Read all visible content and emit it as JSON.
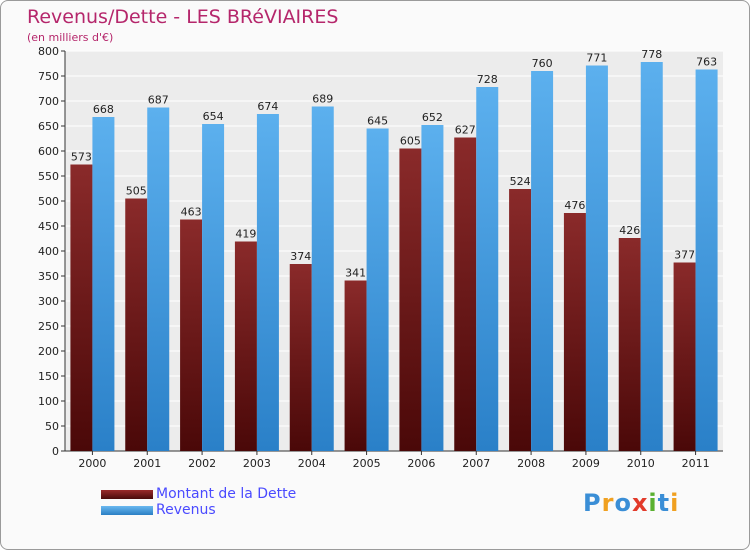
{
  "chart_data": {
    "type": "bar",
    "title": "Revenus/Dette - LES BRéVIAIRES",
    "subtitle": "(en milliers d'€)",
    "categories": [
      "2000",
      "2001",
      "2002",
      "2003",
      "2004",
      "2005",
      "2006",
      "2007",
      "2008",
      "2009",
      "2010",
      "2011"
    ],
    "series": [
      {
        "name": "Montant de la Dette",
        "color": "#7a1b1b",
        "values": [
          573,
          505,
          463,
          419,
          374,
          341,
          605,
          627,
          524,
          476,
          426,
          377
        ]
      },
      {
        "name": "Revenus",
        "color": "#4aa0e2",
        "values": [
          668,
          687,
          654,
          674,
          689,
          645,
          652,
          728,
          760,
          771,
          778,
          763
        ]
      }
    ],
    "ylim": [
      0,
      800
    ],
    "yticks": [
      0,
      50,
      100,
      150,
      200,
      250,
      300,
      350,
      400,
      450,
      500,
      550,
      600,
      650,
      700,
      750,
      800
    ],
    "grid": true,
    "legend_position": "bottom-left"
  },
  "brand": {
    "letters": [
      {
        "ch": "P",
        "color": "#3a8ed6"
      },
      {
        "ch": "r",
        "color": "#f0a020"
      },
      {
        "ch": "o",
        "color": "#3a8ed6"
      },
      {
        "ch": "x",
        "color": "#e23a2a"
      },
      {
        "ch": "i",
        "color": "#5ab030"
      },
      {
        "ch": "t",
        "color": "#3a8ed6"
      },
      {
        "ch": "i",
        "color": "#f0a020"
      }
    ]
  }
}
